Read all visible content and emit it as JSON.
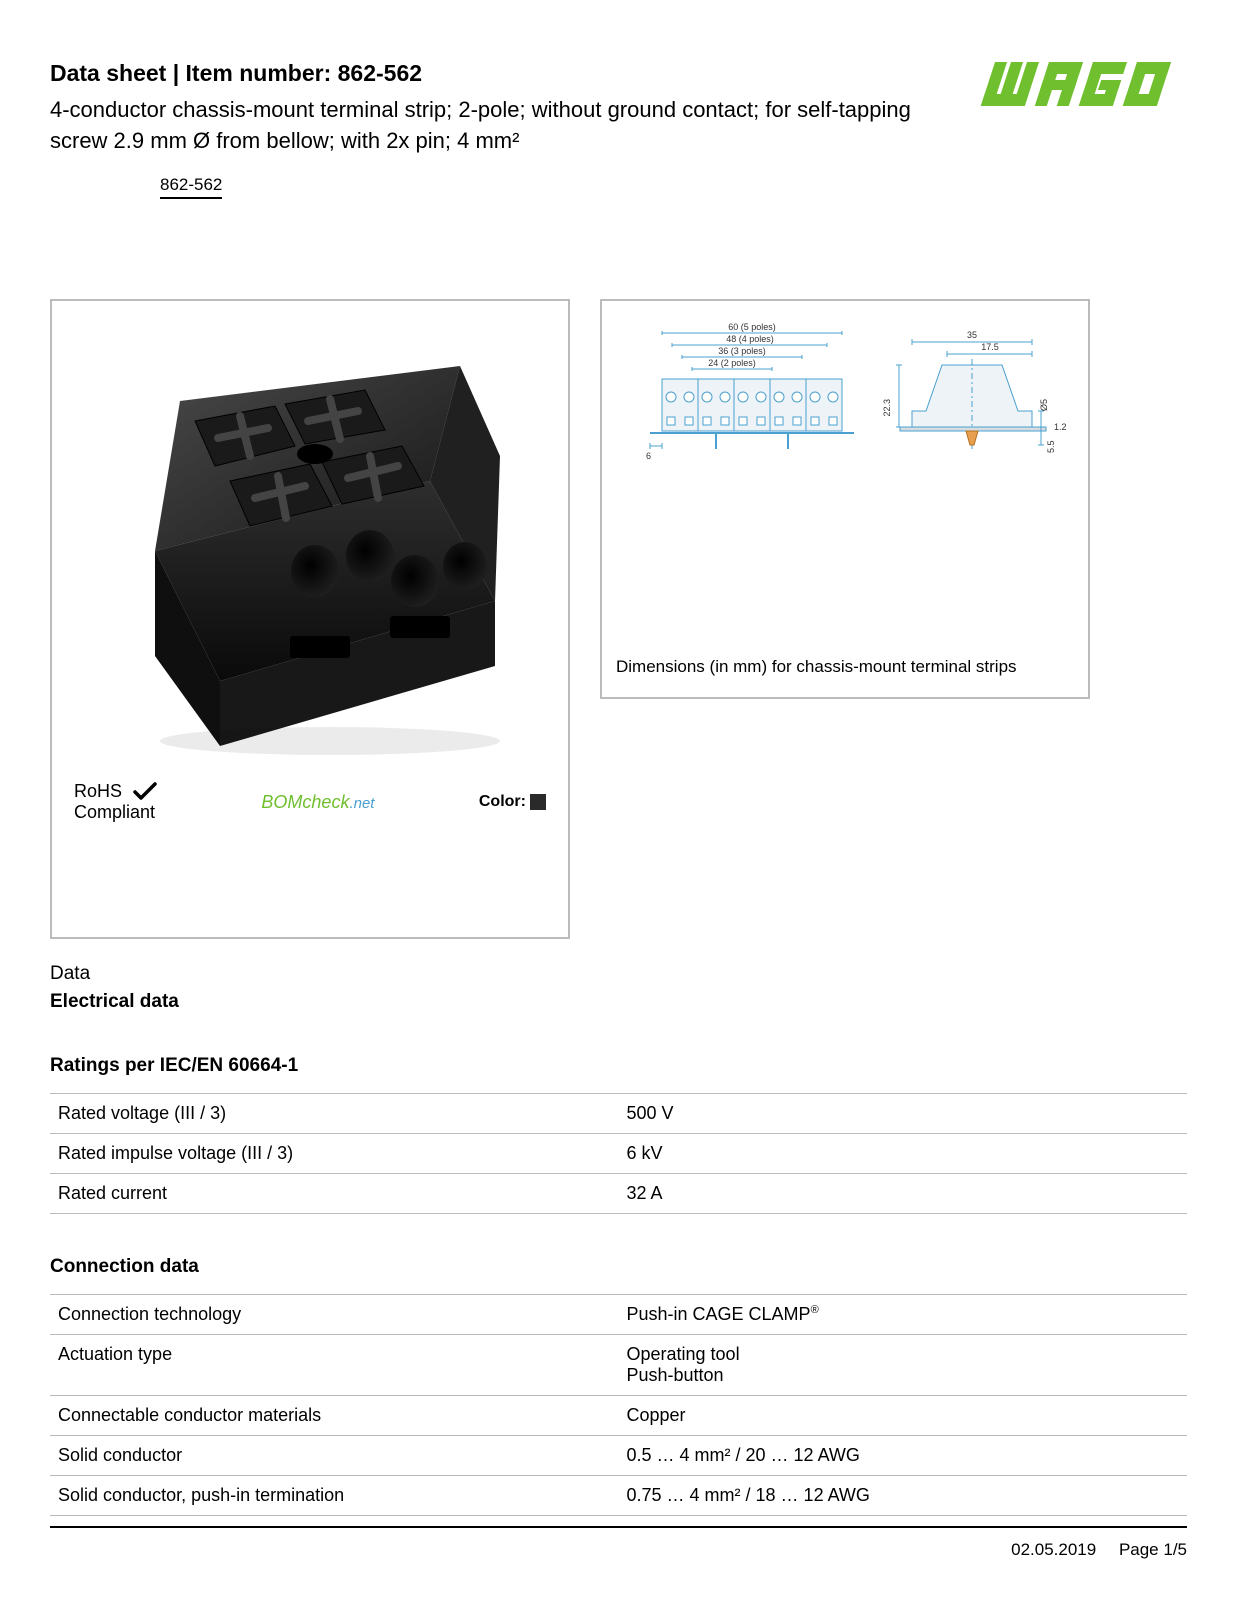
{
  "header": {
    "title_prefix": "Data sheet",
    "title_sep": "  |  ",
    "title_item_label": "Item number:",
    "item_number": "862-562",
    "subtitle": "4-conductor chassis-mount terminal strip; 2-pole; without ground contact; for self-tapping screw 2.9 mm Ø from bellow; with 2x pin; 4 mm²",
    "part_link": "862-562",
    "logo_color": "#6fbf2e"
  },
  "product_image": {
    "body_color": "#2a2a2a"
  },
  "dimension_drawing": {
    "labels": {
      "w5": "60 (5 poles)",
      "w4": "48 (4 poles)",
      "w3": "36 (3 poles)",
      "w2": "24 (2 poles)",
      "gap": "6",
      "depth": "35",
      "half": "17.5",
      "height": "22.3",
      "hole": "Ø5",
      "thk": "1.2",
      "pin": "5.5"
    },
    "line_color": "#4aa0d0",
    "fill_color": "#eef3f7",
    "caption": "Dimensions (in mm) for chassis-mount terminal strips"
  },
  "compliance": {
    "rohs_line1": "RoHS",
    "rohs_line2": "Compliant",
    "bomcheck": "BOMcheck",
    "bomcheck_suffix": ".net",
    "color_label": "Color:",
    "color_hex": "#2a2a2a"
  },
  "sections": {
    "data_label": "Data",
    "electrical_title": "Electrical data",
    "ratings_title": "Ratings per IEC/EN 60664-1",
    "ratings_rows": [
      {
        "k": "Rated voltage (III / 3)",
        "v": "500 V"
      },
      {
        "k": "Rated impulse voltage (III / 3)",
        "v": "6 kV"
      },
      {
        "k": "Rated current",
        "v": "32 A"
      }
    ],
    "connection_title": "Connection data",
    "connection_rows": [
      {
        "k": "Connection technology",
        "v": "Push-in CAGE CLAMP",
        "sup": "®"
      },
      {
        "k": "Actuation type",
        "v": "Operating tool\nPush-button"
      },
      {
        "k": "Connectable conductor materials",
        "v": "Copper"
      },
      {
        "k": "Solid conductor",
        "v": "0.5 … 4 mm² / 20 … 12 AWG"
      },
      {
        "k": "Solid conductor, push-in termination",
        "v": "0.75 … 4 mm² / 18 … 12 AWG"
      }
    ]
  },
  "footer": {
    "date": "02.05.2019",
    "page": "Page 1/5"
  }
}
